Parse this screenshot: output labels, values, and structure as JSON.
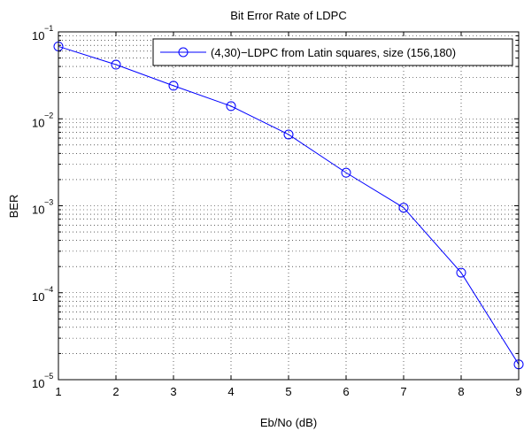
{
  "chart_data": {
    "type": "line",
    "title": "Bit Error Rate of LDPC",
    "xlabel": "Eb/No (dB)",
    "ylabel": "BER",
    "xlim": [
      1,
      9
    ],
    "ylim": [
      1e-05,
      0.1
    ],
    "yscale": "log",
    "grid": true,
    "legend_position": "top-right",
    "x_ticks": [
      "1",
      "2",
      "3",
      "4",
      "5",
      "6",
      "7",
      "8",
      "9"
    ],
    "y_ticks": [
      {
        "base": "10",
        "exp": "−5"
      },
      {
        "base": "10",
        "exp": "−4"
      },
      {
        "base": "10",
        "exp": "−3"
      },
      {
        "base": "10",
        "exp": "−2"
      },
      {
        "base": "10",
        "exp": "−1"
      }
    ],
    "series": [
      {
        "name": "(4,30)−LDPC from Latin squares, size (156,180)",
        "color": "#0000ff",
        "marker": "circle",
        "x": [
          1,
          2,
          3,
          4,
          5,
          6,
          7,
          8,
          9
        ],
        "y": [
          0.068,
          0.042,
          0.024,
          0.014,
          0.0066,
          0.0024,
          0.00095,
          0.00017,
          1.5e-05
        ]
      }
    ]
  }
}
